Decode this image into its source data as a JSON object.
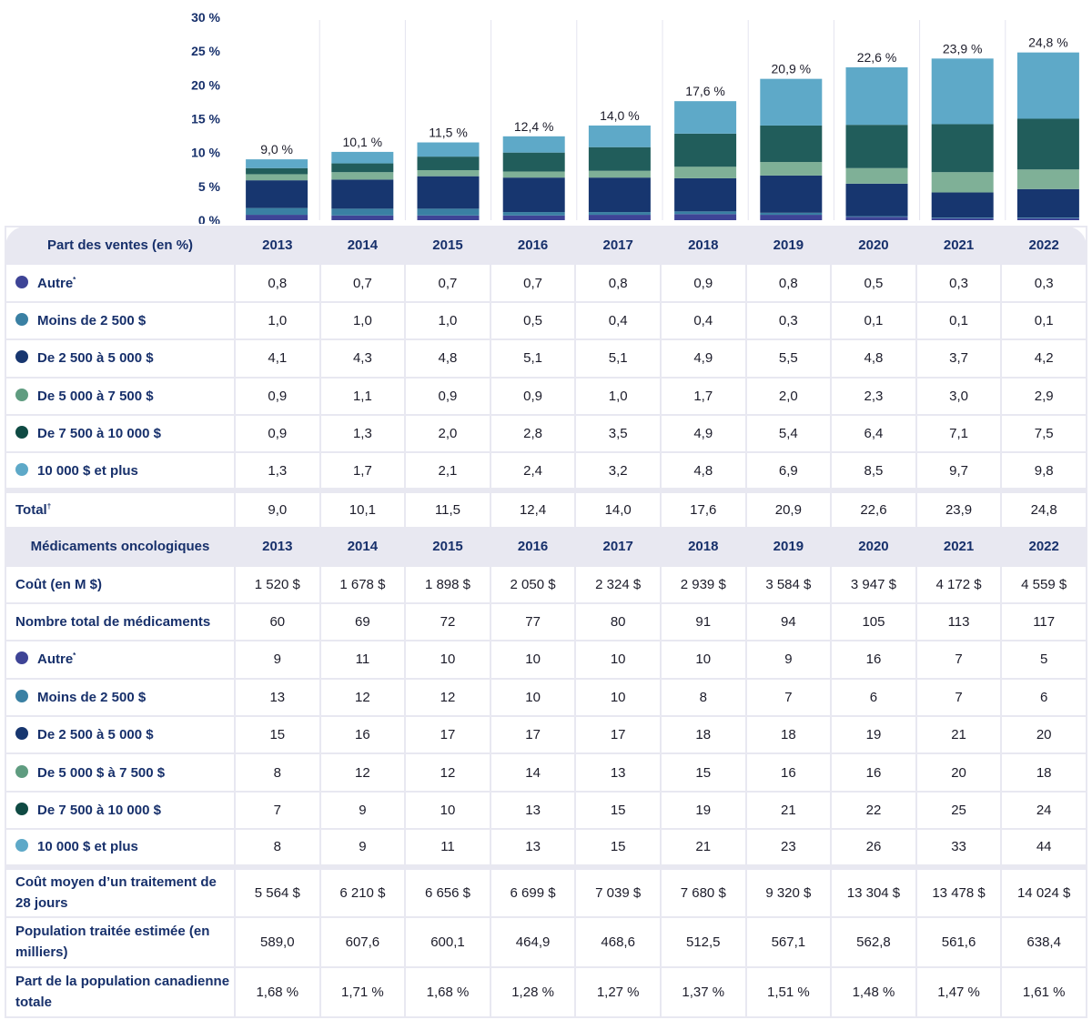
{
  "chart_data": {
    "type": "bar",
    "stacked": true,
    "title": "",
    "xlabel": "",
    "ylabel": "",
    "ylim": [
      0,
      30
    ],
    "y_ticks": [
      "0 %",
      "5 %",
      "10 %",
      "15 %",
      "20 %",
      "25 %",
      "30 %"
    ],
    "categories": [
      "2013",
      "2014",
      "2015",
      "2016",
      "2017",
      "2018",
      "2019",
      "2020",
      "2021",
      "2022"
    ],
    "series": [
      {
        "name": "Autre*",
        "color": "#3e4496",
        "values": [
          0.8,
          0.7,
          0.7,
          0.7,
          0.8,
          0.9,
          0.8,
          0.5,
          0.3,
          0.3
        ]
      },
      {
        "name": "Moins de 2 500 $",
        "color": "#3a80a3",
        "values": [
          1.0,
          1.0,
          1.0,
          0.5,
          0.4,
          0.4,
          0.3,
          0.1,
          0.1,
          0.1
        ]
      },
      {
        "name": "De 2 500 à 5 000 $",
        "color": "#17366f",
        "values": [
          4.1,
          4.3,
          4.8,
          5.1,
          5.1,
          4.9,
          5.5,
          4.8,
          3.7,
          4.2
        ]
      },
      {
        "name": "De 5 000 à 7 500 $",
        "color": "#7fb097",
        "values": [
          0.9,
          1.1,
          0.9,
          0.9,
          1.0,
          1.7,
          2.0,
          2.3,
          3.0,
          2.9
        ]
      },
      {
        "name": "De 7 500 à 10 000 $",
        "color": "#215d5b",
        "values": [
          0.9,
          1.3,
          2.0,
          2.8,
          3.5,
          4.9,
          5.4,
          6.4,
          7.1,
          7.5
        ]
      },
      {
        "name": "10 000 $ et plus",
        "color": "#5ea9c8",
        "values": [
          1.3,
          1.7,
          2.1,
          2.4,
          3.2,
          4.8,
          6.9,
          8.5,
          9.7,
          9.8
        ]
      }
    ],
    "totals": [
      9.0,
      10.1,
      11.5,
      12.4,
      14.0,
      17.6,
      20.9,
      22.6,
      23.9,
      24.8
    ],
    "total_labels": [
      "9,0 %",
      "10,1 %",
      "11,5 %",
      "12,4 %",
      "14,0 %",
      "17,6 %",
      "20,9 %",
      "22,6 %",
      "23,9 %",
      "24,8 %"
    ],
    "legend": "none (table rows serve as legend)"
  },
  "table": {
    "section1": {
      "header": "Part des ventes (en %)",
      "years": [
        "2013",
        "2014",
        "2015",
        "2016",
        "2017",
        "2018",
        "2019",
        "2020",
        "2021",
        "2022"
      ],
      "rows": [
        {
          "label": "Autre",
          "sup": "*",
          "color": "#3e4496",
          "values": [
            "0,8",
            "0,7",
            "0,7",
            "0,7",
            "0,8",
            "0,9",
            "0,8",
            "0,5",
            "0,3",
            "0,3"
          ]
        },
        {
          "label": "Moins de 2 500 $",
          "sup": "",
          "color": "#3a80a3",
          "values": [
            "1,0",
            "1,0",
            "1,0",
            "0,5",
            "0,4",
            "0,4",
            "0,3",
            "0,1",
            "0,1",
            "0,1"
          ]
        },
        {
          "label": "De 2 500 à 5 000 $",
          "sup": "",
          "color": "#17366f",
          "values": [
            "4,1",
            "4,3",
            "4,8",
            "5,1",
            "5,1",
            "4,9",
            "5,5",
            "4,8",
            "3,7",
            "4,2"
          ]
        },
        {
          "label": "De 5 000 à 7 500 $",
          "sup": "",
          "color": "#5f9c80",
          "values": [
            "0,9",
            "1,1",
            "0,9",
            "0,9",
            "1,0",
            "1,7",
            "2,0",
            "2,3",
            "3,0",
            "2,9"
          ]
        },
        {
          "label": "De 7 500 à 10 000 $",
          "sup": "",
          "color": "#0f4a43",
          "values": [
            "0,9",
            "1,3",
            "2,0",
            "2,8",
            "3,5",
            "4,9",
            "5,4",
            "6,4",
            "7,1",
            "7,5"
          ]
        },
        {
          "label": "10 000 $ et plus",
          "sup": "",
          "color": "#5ea9c8",
          "values": [
            "1,3",
            "1,7",
            "2,1",
            "2,4",
            "3,2",
            "4,8",
            "6,9",
            "8,5",
            "9,7",
            "9,8"
          ]
        }
      ],
      "total": {
        "label": "Total",
        "sup": "†",
        "values": [
          "9,0",
          "10,1",
          "11,5",
          "12,4",
          "14,0",
          "17,6",
          "20,9",
          "22,6",
          "23,9",
          "24,8"
        ]
      }
    },
    "section2": {
      "header": "Médicaments oncologiques",
      "years": [
        "2013",
        "2014",
        "2015",
        "2016",
        "2017",
        "2018",
        "2019",
        "2020",
        "2021",
        "2022"
      ],
      "cost": {
        "label": "Coût (en M $)",
        "values": [
          "1 520 $",
          "1 678 $",
          "1 898 $",
          "2 050 $",
          "2 324 $",
          "2 939 $",
          "3 584 $",
          "3 947 $",
          "4 172 $",
          "4 559 $"
        ]
      },
      "count": {
        "label": "Nombre total de médicaments",
        "values": [
          "60",
          "69",
          "72",
          "77",
          "80",
          "91",
          "94",
          "105",
          "113",
          "117"
        ]
      },
      "rows": [
        {
          "label": "Autre",
          "sup": "*",
          "color": "#3e4496",
          "values": [
            "9",
            "11",
            "10",
            "10",
            "10",
            "10",
            "9",
            "16",
            "7",
            "5"
          ]
        },
        {
          "label": "Moins de 2 500 $",
          "sup": "",
          "color": "#3a80a3",
          "values": [
            "13",
            "12",
            "12",
            "10",
            "10",
            "8",
            "7",
            "6",
            "7",
            "6"
          ]
        },
        {
          "label": "De 2 500 à 5 000 $",
          "sup": "",
          "color": "#17366f",
          "values": [
            "15",
            "16",
            "17",
            "17",
            "17",
            "18",
            "18",
            "19",
            "21",
            "20"
          ]
        },
        {
          "label": "De 5 000 $ à 7 500 $",
          "sup": "",
          "color": "#5f9c80",
          "values": [
            "8",
            "12",
            "12",
            "14",
            "13",
            "15",
            "16",
            "16",
            "20",
            "18"
          ]
        },
        {
          "label": "De 7 500 à 10 000 $",
          "sup": "",
          "color": "#0f4a43",
          "values": [
            "7",
            "9",
            "10",
            "13",
            "15",
            "19",
            "21",
            "22",
            "25",
            "24"
          ]
        },
        {
          "label": "10 000 $ et plus",
          "sup": "",
          "color": "#5ea9c8",
          "values": [
            "8",
            "9",
            "11",
            "13",
            "15",
            "21",
            "23",
            "26",
            "33",
            "44"
          ]
        }
      ],
      "avg_cost": {
        "label": "Coût moyen d’un traitement de 28 jours",
        "values": [
          "5 564 $",
          "6 210 $",
          "6 656 $",
          "6 699 $",
          "7 039 $",
          "7 680 $",
          "9 320 $",
          "13 304 $",
          "13 478 $",
          "14 024 $"
        ]
      },
      "population": {
        "label": "Population traitée estimée (en milliers)",
        "values": [
          "589,0",
          "607,6",
          "600,1",
          "464,9",
          "468,6",
          "512,5",
          "567,1",
          "562,8",
          "561,6",
          "638,4"
        ]
      },
      "share": {
        "label": "Part de la population canadienne totale",
        "values": [
          "1,68 %",
          "1,71 %",
          "1,68 %",
          "1,28 %",
          "1,27 %",
          "1,37 %",
          "1,51 %",
          "1,48 %",
          "1,47 %",
          "1,61 %"
        ]
      }
    }
  }
}
